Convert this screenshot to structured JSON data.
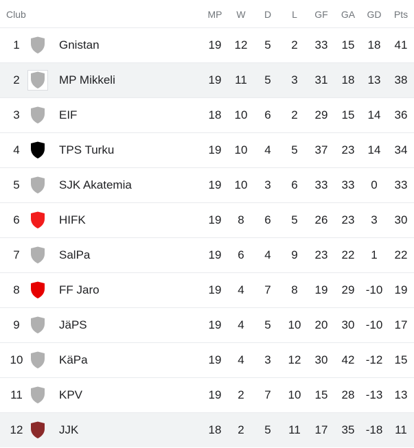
{
  "headers": {
    "club": "Club",
    "mp": "MP",
    "w": "W",
    "d": "D",
    "l": "L",
    "gf": "GF",
    "ga": "GA",
    "gd": "GD",
    "pts": "Pts"
  },
  "colors": {
    "default_badge": "#b0b0b0",
    "tps_badge": "#000000",
    "hifk_badge": "#f21c1c",
    "jaro_badge": "#e60000",
    "jjk_badge": "#8b2a2a"
  },
  "rows": [
    {
      "rank": "1",
      "club": "Gnistan",
      "mp": "19",
      "w": "12",
      "d": "5",
      "l": "2",
      "gf": "33",
      "ga": "15",
      "gd": "18",
      "pts": "41",
      "badge_color": "#b0b0b0",
      "badge_icon": "shield-icon"
    },
    {
      "rank": "2",
      "club": "MP Mikkeli",
      "mp": "19",
      "w": "11",
      "d": "5",
      "l": "3",
      "gf": "31",
      "ga": "18",
      "gd": "13",
      "pts": "38",
      "badge_color": "#b0b0b0",
      "badge_icon": "shield-icon"
    },
    {
      "rank": "3",
      "club": "EIF",
      "mp": "18",
      "w": "10",
      "d": "6",
      "l": "2",
      "gf": "29",
      "ga": "15",
      "gd": "14",
      "pts": "36",
      "badge_color": "#b0b0b0",
      "badge_icon": "shield-icon"
    },
    {
      "rank": "4",
      "club": "TPS Turku",
      "mp": "19",
      "w": "10",
      "d": "4",
      "l": "5",
      "gf": "37",
      "ga": "23",
      "gd": "14",
      "pts": "34",
      "badge_color": "#000000",
      "badge_icon": "shield-icon"
    },
    {
      "rank": "5",
      "club": "SJK Akatemia",
      "mp": "19",
      "w": "10",
      "d": "3",
      "l": "6",
      "gf": "33",
      "ga": "33",
      "gd": "0",
      "pts": "33",
      "badge_color": "#b0b0b0",
      "badge_icon": "shield-icon"
    },
    {
      "rank": "6",
      "club": "HIFK",
      "mp": "19",
      "w": "8",
      "d": "6",
      "l": "5",
      "gf": "26",
      "ga": "23",
      "gd": "3",
      "pts": "30",
      "badge_color": "#f21c1c",
      "badge_icon": "shield-icon"
    },
    {
      "rank": "7",
      "club": "SalPa",
      "mp": "19",
      "w": "6",
      "d": "4",
      "l": "9",
      "gf": "23",
      "ga": "22",
      "gd": "1",
      "pts": "22",
      "badge_color": "#b0b0b0",
      "badge_icon": "shield-icon"
    },
    {
      "rank": "8",
      "club": "FF Jaro",
      "mp": "19",
      "w": "4",
      "d": "7",
      "l": "8",
      "gf": "19",
      "ga": "29",
      "gd": "-10",
      "pts": "19",
      "badge_color": "#e60000",
      "badge_icon": "shield-icon"
    },
    {
      "rank": "9",
      "club": "JäPS",
      "mp": "19",
      "w": "4",
      "d": "5",
      "l": "10",
      "gf": "20",
      "ga": "30",
      "gd": "-10",
      "pts": "17",
      "badge_color": "#b0b0b0",
      "badge_icon": "shield-icon"
    },
    {
      "rank": "10",
      "club": "KäPa",
      "mp": "19",
      "w": "4",
      "d": "3",
      "l": "12",
      "gf": "30",
      "ga": "42",
      "gd": "-12",
      "pts": "15",
      "badge_color": "#b0b0b0",
      "badge_icon": "shield-icon"
    },
    {
      "rank": "11",
      "club": "KPV",
      "mp": "19",
      "w": "2",
      "d": "7",
      "l": "10",
      "gf": "15",
      "ga": "28",
      "gd": "-13",
      "pts": "13",
      "badge_color": "#b0b0b0",
      "badge_icon": "shield-icon"
    },
    {
      "rank": "12",
      "club": "JJK",
      "mp": "18",
      "w": "2",
      "d": "5",
      "l": "11",
      "gf": "17",
      "ga": "35",
      "gd": "-18",
      "pts": "11",
      "badge_color": "#8b2a2a",
      "badge_icon": "shield-icon"
    }
  ]
}
